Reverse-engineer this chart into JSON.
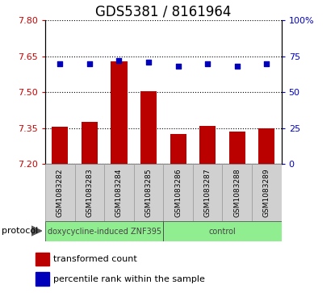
{
  "title": "GDS5381 / 8161964",
  "samples": [
    "GSM1083282",
    "GSM1083283",
    "GSM1083284",
    "GSM1083285",
    "GSM1083286",
    "GSM1083287",
    "GSM1083288",
    "GSM1083289"
  ],
  "transformed_counts": [
    7.355,
    7.375,
    7.63,
    7.505,
    7.325,
    7.36,
    7.335,
    7.35
  ],
  "percentile_ranks": [
    70,
    70,
    72,
    71,
    68,
    70,
    68,
    70
  ],
  "ylim_left": [
    7.2,
    7.8
  ],
  "ylim_right": [
    0,
    100
  ],
  "yticks_left": [
    7.2,
    7.35,
    7.5,
    7.65,
    7.8
  ],
  "yticks_right": [
    0,
    25,
    50,
    75,
    100
  ],
  "bar_color": "#bb0000",
  "dot_color": "#0000bb",
  "bar_base": 7.2,
  "group1_label": "doxycycline-induced ZNF395",
  "group2_label": "control",
  "group_color": "#90ee90",
  "protocol_label": "protocol",
  "legend_bar_label": "transformed count",
  "legend_dot_label": "percentile rank within the sample",
  "left_tick_color": "#cc0000",
  "right_tick_color": "#0000cc",
  "title_fontsize": 12,
  "tick_fontsize": 8,
  "sample_fontsize": 6.5,
  "proto_fontsize": 7,
  "legend_fontsize": 8
}
